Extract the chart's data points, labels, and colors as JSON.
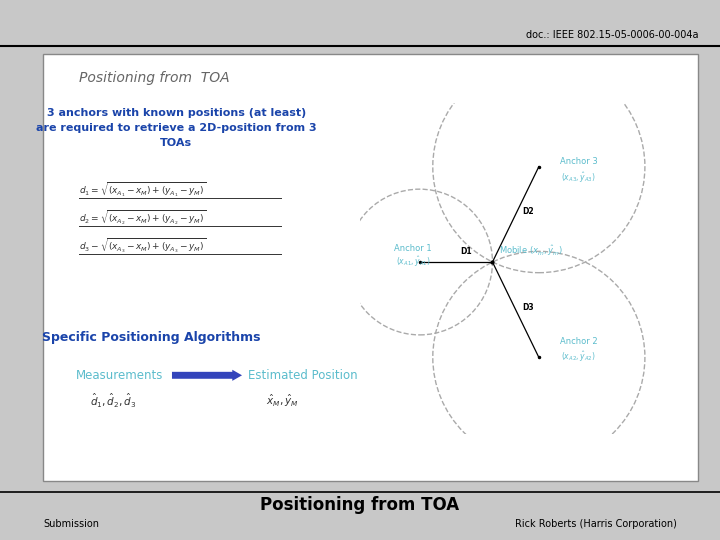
{
  "header_text": "doc.: IEEE 802.15-05-0006-00-004a",
  "slide_title": "Positioning from  TOA",
  "footer_title": "Positioning from TOA",
  "footer_left": "Submission",
  "footer_right": "Rick Roberts (Harris Corporation)",
  "bg_color": "#c8c8c8",
  "anchor_color": "#5bbccc",
  "bold_blue": "#1a44aa",
  "text_blue": "#5bbccc",
  "eq_color": "#333333",
  "circle_edge": "#aaaaaa",
  "desc_text_line1": "3 anchors with known positions (at least)",
  "desc_text_line2": "are required to retrieve a 2D-position from 3",
  "desc_text_line3": "TOAs",
  "spec_alg": "Specific Positioning Algorithms",
  "meas_label": "Measurements",
  "est_label": "Estimated Position"
}
